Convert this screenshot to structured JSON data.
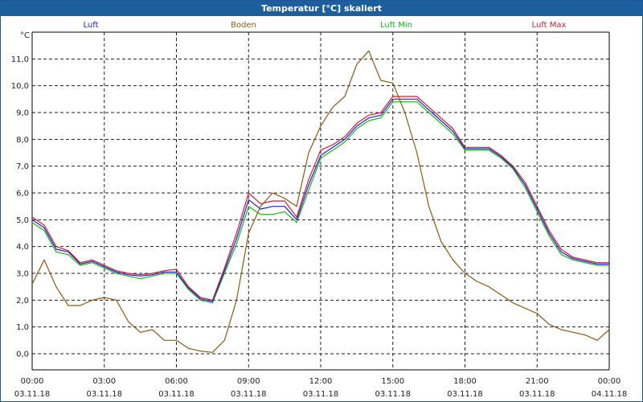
{
  "window": {
    "title": "Temperatur [°C] skaliert"
  },
  "colors": {
    "luft": "#2020c8",
    "boden": "#8b5a14",
    "luft_min": "#18b418",
    "luft_max": "#c81e3c",
    "grid": "#222222",
    "axis": "#000000"
  },
  "chart_data": {
    "type": "line",
    "title": "Temperatur [°C] skaliert",
    "ylabel": "°C",
    "xlabel": "",
    "ylim": [
      -0.6,
      12.0
    ],
    "xlim": [
      0,
      24
    ],
    "yticks": [
      0,
      1,
      2,
      3,
      4,
      5,
      6,
      7,
      8,
      9,
      10,
      11
    ],
    "ytick_labels": [
      "0,0",
      "1,0",
      "2,0",
      "3,0",
      "4,0",
      "5,0",
      "6,0",
      "7,0",
      "8,0",
      "9,0",
      "10,0",
      "11,0"
    ],
    "xticks": [
      0,
      3,
      6,
      9,
      12,
      15,
      18,
      21,
      24
    ],
    "xtick_labels": [
      {
        "time": "00:00",
        "date": "03.11.18"
      },
      {
        "time": "03:00",
        "date": "03.11.18"
      },
      {
        "time": "06:00",
        "date": "03.11.18"
      },
      {
        "time": "09:00",
        "date": "03.11.18"
      },
      {
        "time": "12:00",
        "date": "03.11.18"
      },
      {
        "time": "15:00",
        "date": "03.11.18"
      },
      {
        "time": "18:00",
        "date": "03.11.18"
      },
      {
        "time": "21:00",
        "date": "03.11.18"
      },
      {
        "time": "00:00",
        "date": "04.11.18"
      }
    ],
    "grid": true,
    "legend": [
      "Luft",
      "Boden",
      "Luft Min",
      "Luft Max"
    ],
    "legend_position": "top",
    "x": [
      0,
      0.5,
      1,
      1.5,
      2,
      2.5,
      3,
      3.5,
      4,
      4.5,
      5,
      5.5,
      6,
      6.5,
      7,
      7.5,
      8,
      8.5,
      9,
      9.5,
      10,
      10.5,
      11,
      11.5,
      12,
      12.5,
      13,
      13.5,
      14,
      14.5,
      15,
      15.5,
      16,
      16.5,
      17,
      17.5,
      18,
      18.5,
      19,
      19.5,
      20,
      20.5,
      21,
      21.5,
      22,
      22.5,
      23,
      23.5,
      24
    ],
    "series": [
      {
        "name": "Luft Min",
        "key": "luft_min",
        "values": [
          4.9,
          4.6,
          3.8,
          3.7,
          3.3,
          3.4,
          3.2,
          3.0,
          2.9,
          2.8,
          2.9,
          3.0,
          3.0,
          2.4,
          2.0,
          1.9,
          3.0,
          4.1,
          5.5,
          5.2,
          5.2,
          5.3,
          4.9,
          6.1,
          7.3,
          7.6,
          7.9,
          8.4,
          8.7,
          8.8,
          9.4,
          9.4,
          9.4,
          9.0,
          8.6,
          8.2,
          7.6,
          7.6,
          7.6,
          7.3,
          6.9,
          6.2,
          5.3,
          4.4,
          3.7,
          3.5,
          3.4,
          3.3,
          3.3
        ]
      },
      {
        "name": "Luft",
        "key": "luft",
        "values": [
          5.0,
          4.7,
          3.9,
          3.8,
          3.35,
          3.45,
          3.25,
          3.05,
          2.95,
          2.9,
          2.95,
          3.05,
          3.05,
          2.45,
          2.05,
          1.95,
          3.1,
          4.3,
          5.75,
          5.4,
          5.5,
          5.5,
          5.0,
          6.3,
          7.4,
          7.7,
          8.0,
          8.5,
          8.8,
          8.9,
          9.5,
          9.5,
          9.5,
          9.1,
          8.7,
          8.3,
          7.65,
          7.65,
          7.65,
          7.35,
          6.95,
          6.3,
          5.4,
          4.5,
          3.8,
          3.55,
          3.45,
          3.35,
          3.35
        ]
      },
      {
        "name": "Luft Max",
        "key": "luft_max",
        "values": [
          5.1,
          4.8,
          4.0,
          3.85,
          3.4,
          3.5,
          3.3,
          3.1,
          3.0,
          2.95,
          3.0,
          3.1,
          3.15,
          2.5,
          2.1,
          2.0,
          3.2,
          4.5,
          6.0,
          5.6,
          5.7,
          5.7,
          5.1,
          6.5,
          7.6,
          7.8,
          8.1,
          8.6,
          8.9,
          9.0,
          9.6,
          9.6,
          9.6,
          9.2,
          8.8,
          8.4,
          7.7,
          7.7,
          7.7,
          7.4,
          7.0,
          6.4,
          5.5,
          4.6,
          3.9,
          3.6,
          3.5,
          3.4,
          3.4
        ]
      },
      {
        "name": "Boden",
        "key": "boden",
        "values": [
          2.6,
          3.5,
          2.5,
          1.8,
          1.8,
          2.0,
          2.1,
          2.0,
          1.2,
          0.8,
          0.9,
          0.5,
          0.5,
          0.2,
          0.1,
          0.05,
          0.5,
          2.0,
          4.5,
          5.5,
          6.0,
          5.8,
          5.5,
          7.5,
          8.5,
          9.2,
          9.6,
          10.8,
          11.3,
          10.2,
          10.1,
          9.0,
          7.5,
          5.5,
          4.2,
          3.5,
          3.0,
          2.7,
          2.5,
          2.2,
          1.9,
          1.7,
          1.5,
          1.1,
          0.9,
          0.8,
          0.7,
          0.5,
          0.9
        ]
      }
    ]
  }
}
